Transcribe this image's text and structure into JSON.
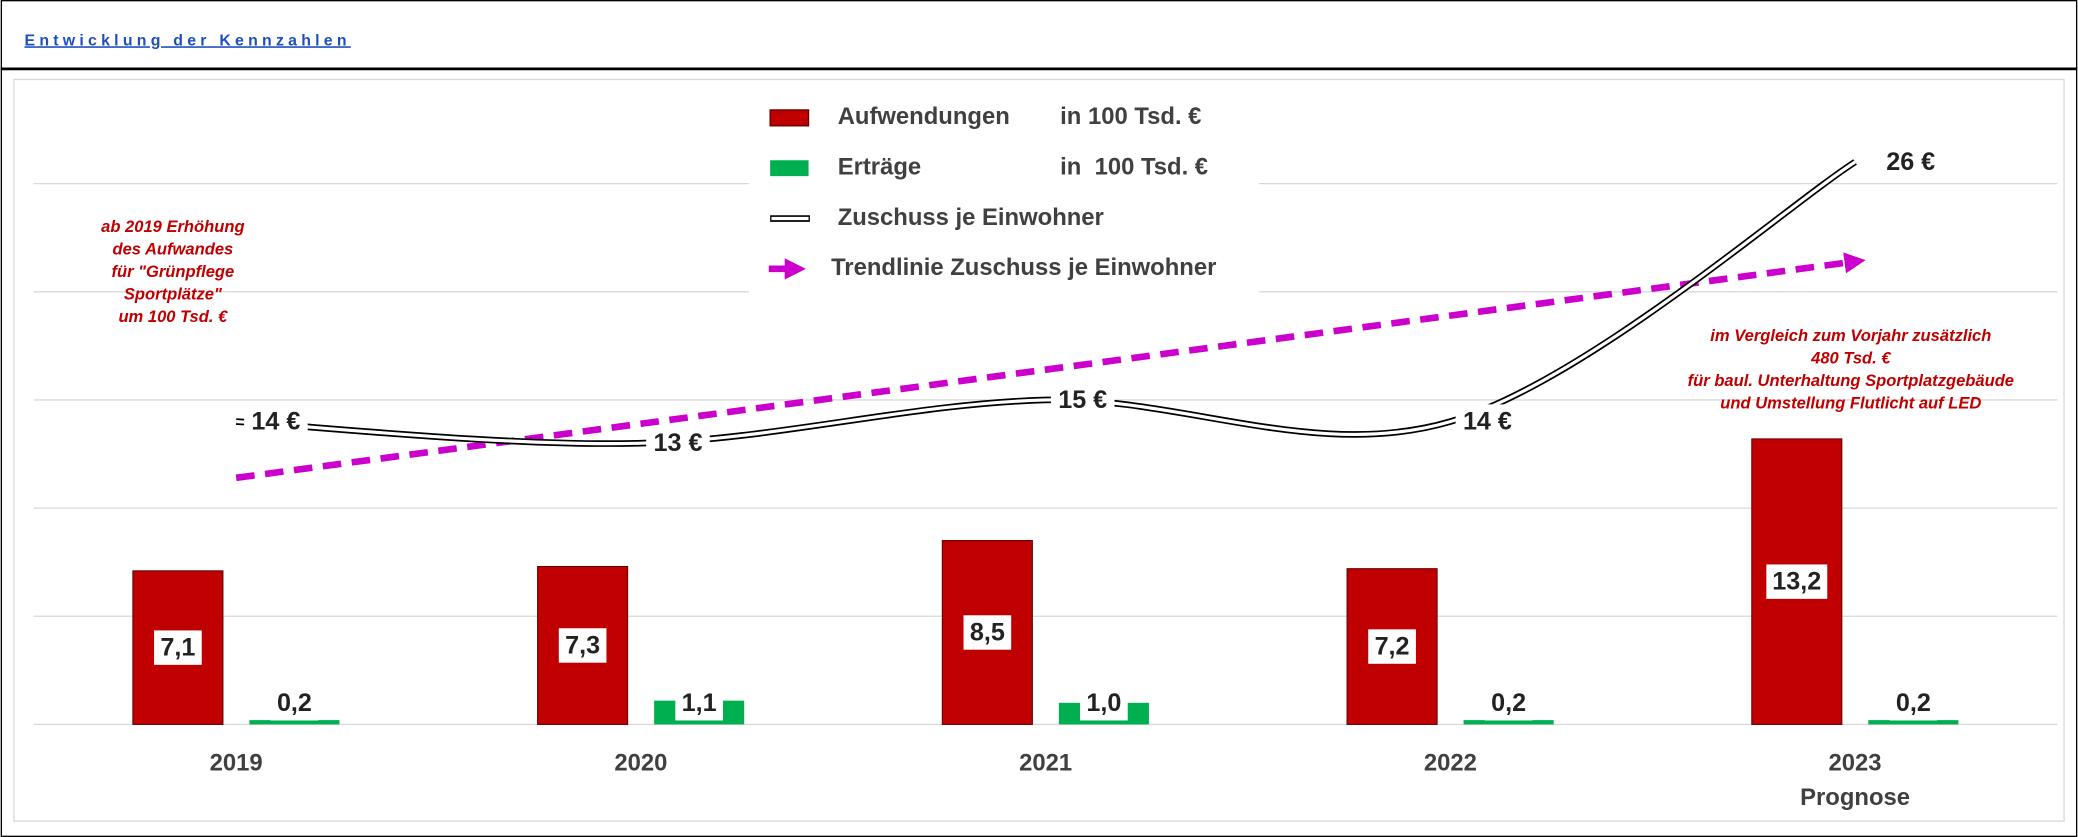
{
  "header": {
    "title": "Entwicklung der Kennzahlen"
  },
  "chart_data": {
    "type": "bar",
    "categories": [
      "2019",
      "2020",
      "2021",
      "2022",
      "2023"
    ],
    "x_sublabels": [
      null,
      null,
      null,
      null,
      "Prognose"
    ],
    "ylim": [
      0,
      30
    ],
    "yticks": [
      0,
      5,
      10,
      15,
      20,
      25
    ],
    "grid": true,
    "legend": "top",
    "series": [
      {
        "name": "Aufwendungen",
        "unit": "in 100 Tsd. €",
        "type": "bar",
        "color": "#c00000",
        "values": [
          7.1,
          7.3,
          8.5,
          7.2,
          13.2
        ],
        "value_labels": [
          "7,1",
          "7,3",
          "8,5",
          "7,2",
          "13,2"
        ]
      },
      {
        "name": "Erträge",
        "unit": "in  100 Tsd. €",
        "type": "bar",
        "color": "#00b050",
        "values": [
          0.2,
          1.1,
          1.0,
          0.2,
          0.2
        ],
        "value_labels": [
          "0,2",
          "1,1",
          "1,0",
          "0,2",
          "0,2"
        ]
      },
      {
        "name": "Zuschuss je Einwohner",
        "type": "line",
        "color": "#000000",
        "values": [
          14,
          13,
          15,
          14,
          26
        ],
        "value_labels": [
          "14 €",
          "13 €",
          "15 €",
          "14 €",
          "26 €"
        ]
      },
      {
        "name": "Trendlinie Zuschuss je Einwohner",
        "type": "trend",
        "color": "#cc00cc",
        "values": [
          11.4,
          13.9,
          16.4,
          18.9,
          21.4
        ]
      }
    ],
    "annotations": [
      {
        "lines": [
          "ab 2019 Erhöhung",
          "des Aufwandes",
          "für \"Grünpflege",
          "Sportplätze\"",
          "um 100 Tsd. €"
        ]
      },
      {
        "lines": [
          "im Vergleich zum Vorjahr zusätzlich",
          "480 Tsd. €",
          "für baul. Unterhaltung Sportplatzgebäude",
          "und Umstellung Flutlicht auf LED"
        ]
      }
    ]
  }
}
